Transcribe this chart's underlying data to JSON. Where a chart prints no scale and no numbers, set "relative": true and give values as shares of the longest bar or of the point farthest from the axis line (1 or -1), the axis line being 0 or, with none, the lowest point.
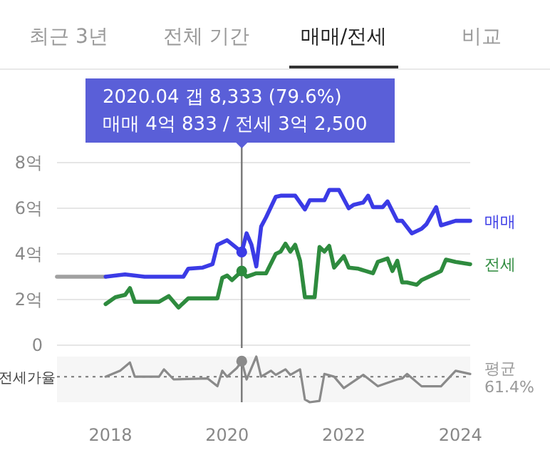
{
  "chart_data": [
    {
      "type": "other",
      "annotations": [
        "최근 3년",
        "전체 기간",
        "매매/전세",
        "비교"
      ]
    },
    {
      "type": "line",
      "xlim": [
        "2017-02",
        "2024-03"
      ],
      "ylim": [
        0,
        8
      ],
      "yticks": [
        0,
        {
          "value": 2,
          "label": "2억"
        },
        {
          "value": 4,
          "label": "4억"
        },
        {
          "value": 6,
          "label": "6억"
        },
        {
          "value": 8,
          "label": "8억"
        }
      ],
      "grid": "y",
      "tick_labels": "y",
      "marker": "none",
      "line_style": "solid",
      "ref_lines": [
        {
          "axis": "x",
          "value": "2020-04",
          "label": null
        }
      ],
      "annotations": [
        "2020.04  갭 8,333 (79.6%)\n매매 4억 833 / 전세 3억 2,500"
      ],
      "series": [
        {
          "color": "#a0a0a0",
          "x": [
            "2017-02",
            "2017-12"
          ],
          "values": [
            3.0,
            3.0
          ]
        },
        {
          "name": "매매",
          "color": "#3b3be6",
          "x": [
            "2017-12",
            "2018-04",
            "2018-08",
            "2019-04",
            "2019-05",
            "2019-08",
            "2019-10",
            "2019-11",
            "2020-01",
            "2020-04",
            "2020-05",
            "2020-06",
            "2020-07",
            "2020-08",
            "2020-09",
            "2020-11",
            "2020-12",
            "2021-03",
            "2021-05",
            "2021-06",
            "2021-09",
            "2021-10",
            "2021-12",
            "2022-02",
            "2022-03",
            "2022-05",
            "2022-06",
            "2022-07",
            "2022-09",
            "2022-10",
            "2022-12",
            "2023-01",
            "2023-03",
            "2023-05",
            "2023-06",
            "2023-08",
            "2023-09",
            "2023-12",
            "2024-03"
          ],
          "values": [
            3.0,
            3.1,
            3.0,
            3.0,
            3.35,
            3.4,
            3.55,
            4.4,
            4.6,
            4.08,
            4.9,
            4.4,
            3.45,
            5.2,
            5.6,
            6.5,
            6.55,
            6.55,
            5.95,
            6.35,
            6.35,
            6.8,
            6.8,
            6.0,
            6.15,
            6.25,
            6.55,
            6.05,
            6.05,
            6.3,
            5.45,
            5.45,
            4.9,
            5.1,
            5.3,
            6.05,
            5.25,
            5.45,
            5.45
          ]
        },
        {
          "name": "전세",
          "color": "#2e8b3e",
          "x": [
            "2017-12",
            "2018-02",
            "2018-04",
            "2018-05",
            "2018-06",
            "2018-11",
            "2019-01",
            "2019-03",
            "2019-05",
            "2019-11",
            "2019-12",
            "2020-01",
            "2020-02",
            "2020-04",
            "2020-05",
            "2020-07",
            "2020-09",
            "2020-11",
            "2020-12",
            "2021-01",
            "2021-02",
            "2021-03",
            "2021-04",
            "2021-05",
            "2021-07",
            "2021-08",
            "2021-09",
            "2021-10",
            "2021-11",
            "2022-01",
            "2022-02",
            "2022-04",
            "2022-07",
            "2022-08",
            "2022-10",
            "2022-11",
            "2022-12",
            "2023-01",
            "2023-02",
            "2023-04",
            "2023-05",
            "2023-07",
            "2023-09",
            "2023-10",
            "2023-12",
            "2024-03"
          ],
          "values": [
            1.8,
            2.1,
            2.2,
            2.5,
            1.9,
            1.9,
            2.15,
            1.65,
            2.05,
            2.05,
            2.95,
            3.05,
            2.85,
            3.25,
            3.0,
            3.15,
            3.15,
            4.0,
            4.1,
            4.45,
            4.1,
            4.4,
            3.7,
            2.1,
            2.1,
            4.3,
            4.1,
            4.35,
            3.4,
            3.9,
            3.4,
            3.35,
            3.15,
            3.65,
            3.8,
            3.25,
            3.7,
            2.75,
            2.75,
            2.65,
            2.85,
            3.05,
            3.25,
            3.75,
            3.65,
            3.55
          ]
        }
      ]
    },
    {
      "type": "line",
      "relative": true,
      "ylabel": "전세가율",
      "xlim": [
        "2017-02",
        "2024-03"
      ],
      "xticks": [
        "2018",
        "2020",
        "2022",
        "2024"
      ],
      "tick_labels": "x",
      "marker": "none",
      "line_style": "solid",
      "ref_lines": [
        {
          "axis": "y",
          "value": 0.56,
          "label": "평균\n61.4%",
          "line_style": "dotted"
        },
        {
          "axis": "x",
          "value": "2020-04",
          "label": null
        }
      ],
      "series": [
        {
          "color": "#8a8a8a",
          "x": [
            "2017-12",
            "2018-03",
            "2018-05",
            "2018-06",
            "2018-11",
            "2018-12",
            "2019-02",
            "2019-09",
            "2019-11",
            "2019-12",
            "2020-01",
            "2020-03",
            "2020-04",
            "2020-05",
            "2020-07",
            "2020-08",
            "2020-10",
            "2020-11",
            "2021-01",
            "2021-02",
            "2021-04",
            "2021-05",
            "2021-06",
            "2021-08",
            "2021-09",
            "2021-11",
            "2022-01",
            "2022-05",
            "2022-08",
            "2022-12",
            "2023-01",
            "2023-02",
            "2023-05",
            "2023-09",
            "2023-12",
            "2024-03"
          ],
          "values": [
            0.56,
            0.69,
            0.87,
            0.56,
            0.56,
            0.72,
            0.5,
            0.52,
            0.35,
            0.69,
            0.56,
            0.75,
            0.9,
            0.5,
            1.0,
            0.56,
            0.69,
            0.6,
            0.72,
            0.6,
            0.72,
            0.06,
            0.0,
            0.03,
            0.62,
            0.56,
            0.31,
            0.6,
            0.35,
            0.5,
            0.52,
            0.62,
            0.35,
            0.35,
            0.69,
            0.62
          ]
        }
      ]
    }
  ]
}
